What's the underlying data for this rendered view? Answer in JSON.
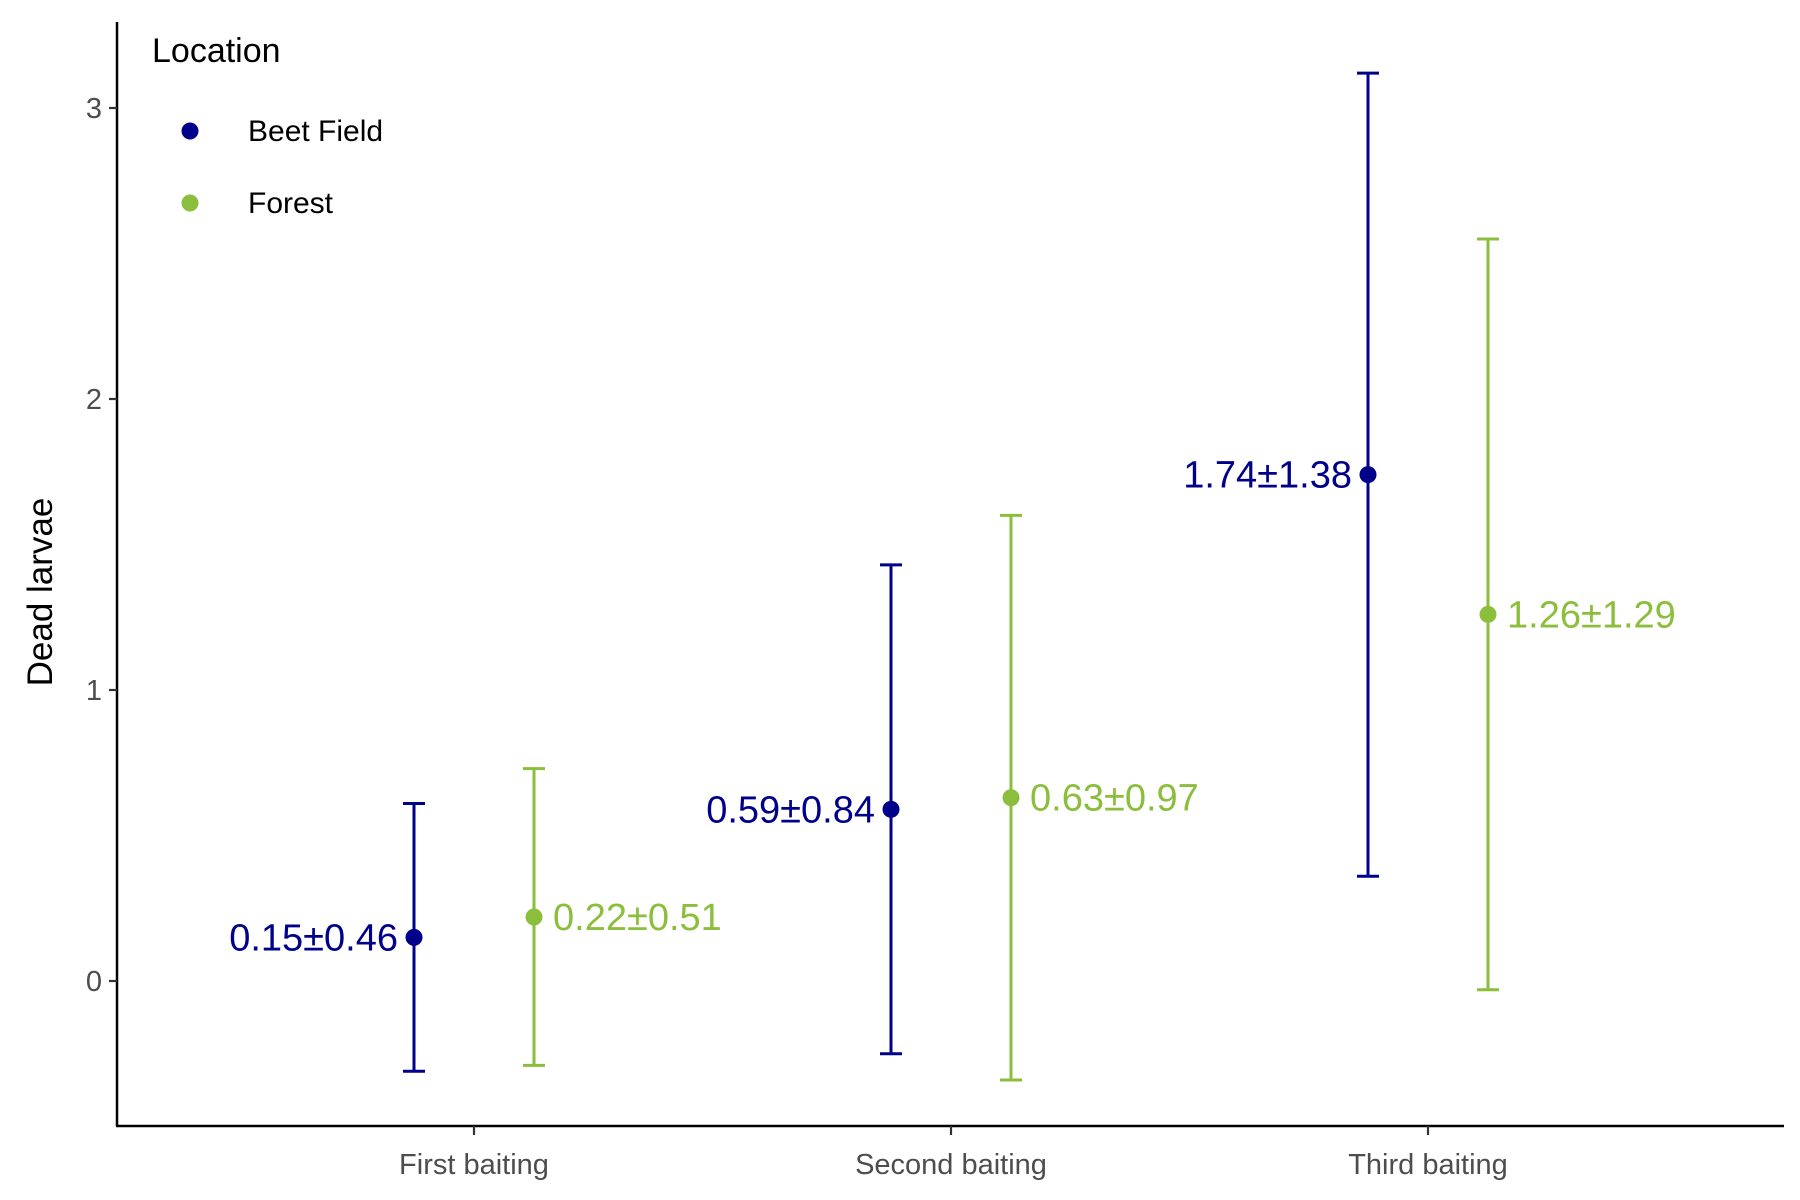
{
  "chart_data": {
    "type": "scatter",
    "title": "",
    "xlabel": "",
    "ylabel": "Dead larvae",
    "categories": [
      "First baiting",
      "Second baiting",
      "Third baiting"
    ],
    "ylim": [
      -0.5,
      3.3
    ],
    "yticks": [
      0,
      1,
      2,
      3
    ],
    "grid": false,
    "legend": {
      "title": "Location",
      "placement": "top-left"
    },
    "series": [
      {
        "name": "Beet Field",
        "color": "#00008B",
        "values": [
          0.15,
          0.59,
          1.74
        ],
        "sd": [
          0.46,
          0.84,
          1.38
        ],
        "labels": [
          "0.15±0.46",
          "0.59±0.84",
          "1.74±1.38"
        ]
      },
      {
        "name": "Forest",
        "color": "#8BBE3C",
        "values": [
          0.22,
          0.63,
          1.26
        ],
        "sd": [
          0.51,
          0.97,
          1.29
        ],
        "labels": [
          "0.22±0.51",
          "0.63±0.97",
          "1.26±1.29"
        ]
      }
    ]
  }
}
